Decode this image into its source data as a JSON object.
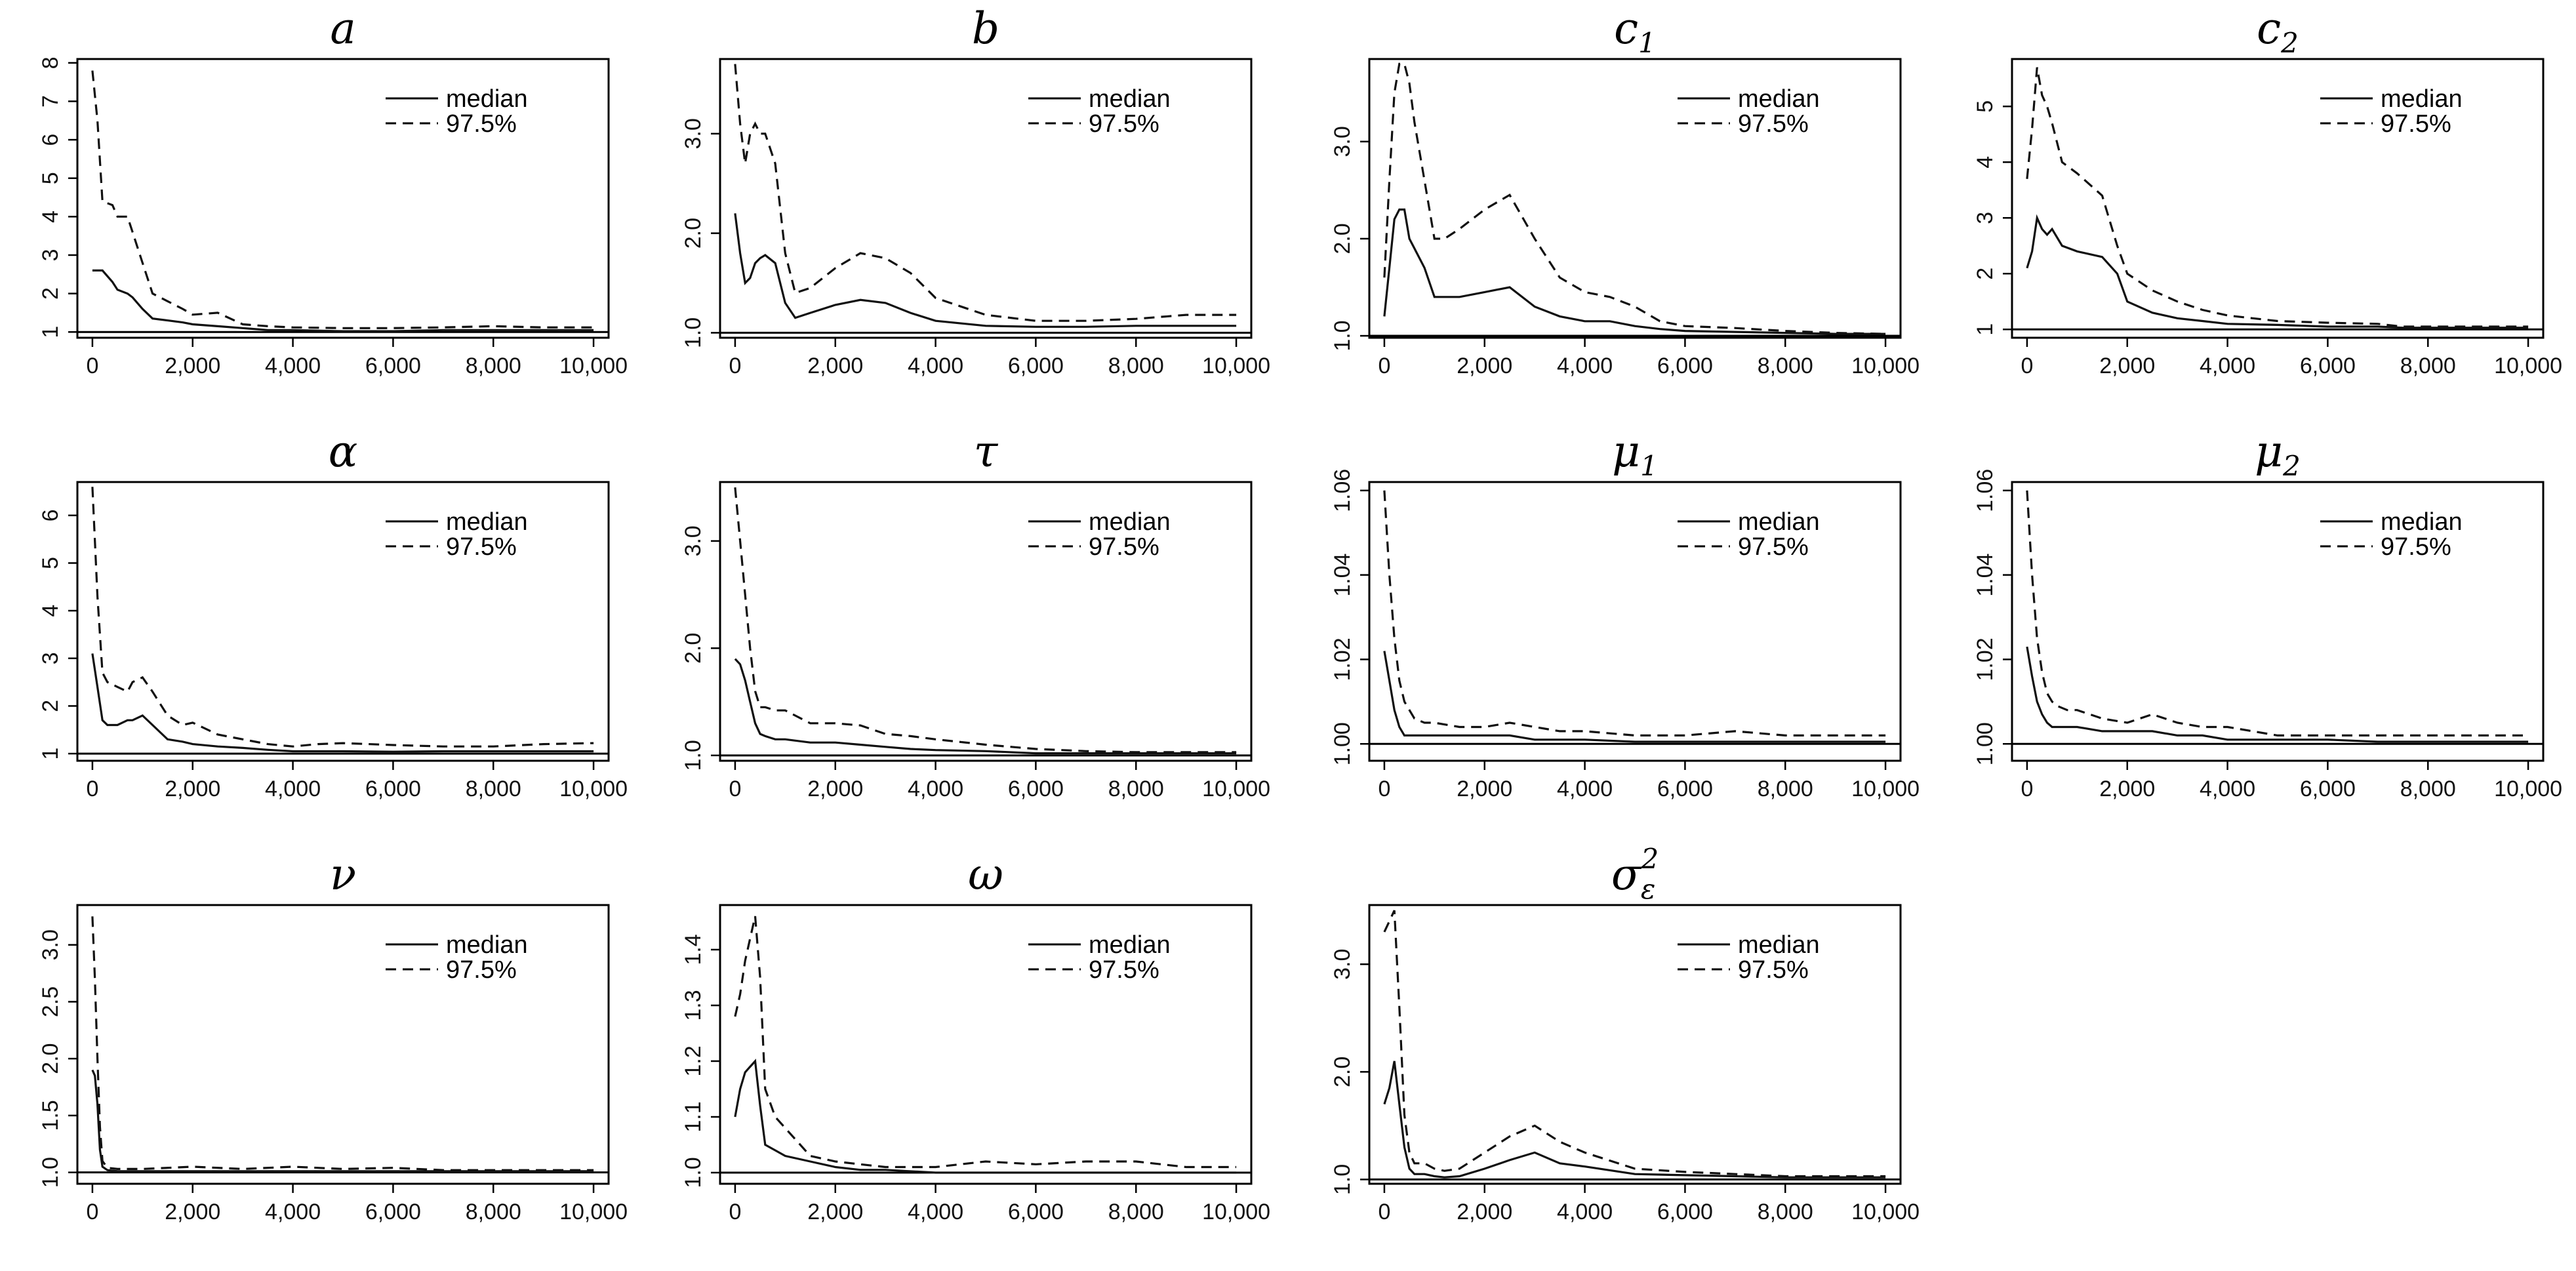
{
  "figure_description": "Convergence diagnostics (median and 97.5% quantile) over iterations for 11 model parameters",
  "legend": {
    "median_label": "median",
    "q975_label": "97.5%"
  },
  "chart_data": [
    {
      "type": "line",
      "title": "a",
      "sub": "",
      "sup": "",
      "ylim": [
        0.85,
        8.1
      ],
      "yticks": [
        1,
        2,
        3,
        4,
        5,
        6,
        7,
        8
      ],
      "ytick_labels": [
        "1",
        "2",
        "3",
        "4",
        "5",
        "6",
        "7",
        "8"
      ],
      "x": [
        0,
        100,
        200,
        400,
        500,
        700,
        800,
        1000,
        1200,
        1500,
        1800,
        2000,
        2500,
        3000,
        3500,
        4000,
        5000,
        6000,
        7000,
        8000,
        9000,
        10000
      ],
      "series": [
        {
          "name": "median",
          "values": [
            2.6,
            2.6,
            2.6,
            2.3,
            2.1,
            2.0,
            1.9,
            1.6,
            1.35,
            1.3,
            1.25,
            1.2,
            1.15,
            1.1,
            1.05,
            1.05,
            1.02,
            1.02,
            1.05,
            1.05,
            1.05,
            1.05
          ]
        },
        {
          "name": "97.5%",
          "values": [
            7.8,
            6.5,
            4.4,
            4.3,
            4.0,
            4.0,
            3.6,
            2.8,
            2.0,
            1.8,
            1.6,
            1.45,
            1.5,
            1.2,
            1.15,
            1.12,
            1.1,
            1.1,
            1.12,
            1.15,
            1.12,
            1.12
          ]
        }
      ]
    },
    {
      "type": "line",
      "title": "b",
      "sub": "",
      "sup": "",
      "ylim": [
        0.95,
        3.75
      ],
      "yticks": [
        1,
        2,
        3
      ],
      "ytick_labels": [
        "1.0",
        "2.0",
        "3.0"
      ],
      "x": [
        0,
        100,
        200,
        300,
        400,
        500,
        600,
        800,
        1000,
        1200,
        1500,
        2000,
        2500,
        3000,
        3500,
        4000,
        5000,
        6000,
        7000,
        8000,
        9000,
        10000
      ],
      "series": [
        {
          "name": "median",
          "values": [
            2.2,
            1.8,
            1.5,
            1.55,
            1.7,
            1.75,
            1.78,
            1.7,
            1.3,
            1.15,
            1.2,
            1.28,
            1.33,
            1.3,
            1.2,
            1.12,
            1.07,
            1.06,
            1.06,
            1.07,
            1.07,
            1.07
          ]
        },
        {
          "name": "97.5%",
          "values": [
            3.7,
            3.1,
            2.7,
            3.0,
            3.1,
            3.0,
            3.0,
            2.7,
            1.8,
            1.4,
            1.45,
            1.65,
            1.8,
            1.75,
            1.6,
            1.35,
            1.18,
            1.12,
            1.12,
            1.14,
            1.18,
            1.18
          ]
        }
      ]
    },
    {
      "type": "line",
      "title": "c",
      "sub": "1",
      "sup": "",
      "ylim": [
        0.98,
        3.85
      ],
      "yticks": [
        1,
        2,
        3
      ],
      "ytick_labels": [
        "1.0",
        "2.0",
        "3.0"
      ],
      "x": [
        0,
        100,
        200,
        300,
        400,
        500,
        600,
        800,
        1000,
        1200,
        1500,
        2000,
        2500,
        3000,
        3500,
        4000,
        4500,
        5000,
        5500,
        6000,
        7000,
        8000,
        9000,
        10000
      ],
      "series": [
        {
          "name": "median",
          "values": [
            1.2,
            1.7,
            2.2,
            2.3,
            2.3,
            2.0,
            1.9,
            1.7,
            1.4,
            1.4,
            1.4,
            1.45,
            1.5,
            1.3,
            1.2,
            1.15,
            1.15,
            1.1,
            1.07,
            1.05,
            1.04,
            1.03,
            1.02,
            1.02
          ]
        },
        {
          "name": "97.5%",
          "values": [
            1.6,
            2.6,
            3.5,
            3.8,
            3.8,
            3.6,
            3.2,
            2.6,
            2.0,
            2.0,
            2.1,
            2.3,
            2.45,
            2.0,
            1.6,
            1.45,
            1.4,
            1.3,
            1.15,
            1.1,
            1.08,
            1.05,
            1.03,
            1.02
          ]
        }
      ]
    },
    {
      "type": "line",
      "title": "c",
      "sub": "2",
      "sup": "",
      "ylim": [
        0.85,
        5.85
      ],
      "yticks": [
        1,
        2,
        3,
        4,
        5
      ],
      "ytick_labels": [
        "1",
        "2",
        "3",
        "4",
        "5"
      ],
      "x": [
        0,
        100,
        200,
        300,
        400,
        500,
        700,
        1000,
        1500,
        1800,
        2000,
        2500,
        3000,
        3500,
        4000,
        5000,
        6000,
        7000,
        7500,
        8000,
        9000,
        10000
      ],
      "series": [
        {
          "name": "median",
          "values": [
            2.1,
            2.4,
            3.0,
            2.8,
            2.7,
            2.8,
            2.5,
            2.4,
            2.3,
            2.0,
            1.5,
            1.3,
            1.2,
            1.15,
            1.1,
            1.08,
            1.05,
            1.05,
            1.03,
            1.03,
            1.03,
            1.03
          ]
        },
        {
          "name": "97.5%",
          "values": [
            3.7,
            4.6,
            5.7,
            5.2,
            5.0,
            4.7,
            4.0,
            3.8,
            3.4,
            2.5,
            2.0,
            1.7,
            1.5,
            1.35,
            1.25,
            1.15,
            1.12,
            1.1,
            1.05,
            1.05,
            1.05,
            1.05
          ]
        }
      ]
    },
    {
      "type": "line",
      "title": "α",
      "sub": "",
      "sup": "",
      "ylim": [
        0.85,
        6.7
      ],
      "yticks": [
        1,
        2,
        3,
        4,
        5,
        6
      ],
      "ytick_labels": [
        "1",
        "2",
        "3",
        "4",
        "5",
        "6"
      ],
      "x": [
        0,
        100,
        200,
        300,
        500,
        700,
        800,
        1000,
        1200,
        1500,
        1800,
        2000,
        2500,
        3000,
        3500,
        4000,
        4500,
        5000,
        6000,
        7000,
        8000,
        9000,
        10000
      ],
      "series": [
        {
          "name": "median",
          "values": [
            3.1,
            2.4,
            1.7,
            1.6,
            1.6,
            1.7,
            1.7,
            1.8,
            1.6,
            1.3,
            1.25,
            1.2,
            1.15,
            1.12,
            1.08,
            1.05,
            1.05,
            1.05,
            1.04,
            1.05,
            1.05,
            1.05,
            1.05
          ]
        },
        {
          "name": "97.5%",
          "values": [
            6.6,
            4.3,
            2.7,
            2.5,
            2.4,
            2.3,
            2.5,
            2.6,
            2.3,
            1.8,
            1.6,
            1.65,
            1.4,
            1.3,
            1.2,
            1.15,
            1.2,
            1.22,
            1.18,
            1.15,
            1.15,
            1.2,
            1.22
          ]
        }
      ]
    },
    {
      "type": "line",
      "title": "τ",
      "sub": "",
      "sup": "",
      "ylim": [
        0.95,
        3.55
      ],
      "yticks": [
        1,
        2,
        3
      ],
      "ytick_labels": [
        "1.0",
        "2.0",
        "3.0"
      ],
      "x": [
        0,
        100,
        200,
        300,
        400,
        500,
        600,
        800,
        1000,
        1500,
        2000,
        2500,
        3000,
        3500,
        4000,
        5000,
        6000,
        7000,
        8000,
        9000,
        10000
      ],
      "series": [
        {
          "name": "median",
          "values": [
            1.9,
            1.85,
            1.7,
            1.5,
            1.3,
            1.2,
            1.18,
            1.15,
            1.15,
            1.12,
            1.12,
            1.1,
            1.08,
            1.06,
            1.05,
            1.04,
            1.02,
            1.02,
            1.02,
            1.02,
            1.02
          ]
        },
        {
          "name": "97.5%",
          "values": [
            3.5,
            3.0,
            2.5,
            2.0,
            1.6,
            1.45,
            1.45,
            1.42,
            1.42,
            1.3,
            1.3,
            1.28,
            1.2,
            1.18,
            1.15,
            1.1,
            1.06,
            1.04,
            1.03,
            1.03,
            1.03
          ]
        }
      ]
    },
    {
      "type": "line",
      "title": "μ",
      "sub": "1",
      "sup": "",
      "ylim": [
        0.996,
        1.062
      ],
      "yticks": [
        1.0,
        1.02,
        1.04,
        1.06
      ],
      "ytick_labels": [
        "1.00",
        "1.02",
        "1.04",
        "1.06"
      ],
      "x": [
        0,
        100,
        200,
        300,
        400,
        500,
        600,
        800,
        1000,
        1500,
        2000,
        2500,
        3000,
        3500,
        4000,
        5000,
        6000,
        7000,
        8000,
        9000,
        10000
      ],
      "series": [
        {
          "name": "median",
          "values": [
            1.022,
            1.015,
            1.008,
            1.004,
            1.002,
            1.002,
            1.002,
            1.002,
            1.002,
            1.002,
            1.002,
            1.002,
            1.001,
            1.001,
            1.001,
            1.0005,
            1.0005,
            1.0005,
            1.0005,
            1.0005,
            1.0005
          ]
        },
        {
          "name": "97.5%",
          "values": [
            1.06,
            1.04,
            1.025,
            1.015,
            1.01,
            1.008,
            1.006,
            1.005,
            1.005,
            1.004,
            1.004,
            1.005,
            1.004,
            1.003,
            1.003,
            1.002,
            1.002,
            1.003,
            1.002,
            1.002,
            1.002
          ]
        }
      ]
    },
    {
      "type": "line",
      "title": "μ",
      "sub": "2",
      "sup": "",
      "ylim": [
        0.996,
        1.062
      ],
      "yticks": [
        1.0,
        1.02,
        1.04,
        1.06
      ],
      "ytick_labels": [
        "1.00",
        "1.02",
        "1.04",
        "1.06"
      ],
      "x": [
        0,
        100,
        200,
        300,
        400,
        500,
        600,
        800,
        1000,
        1500,
        2000,
        2500,
        3000,
        3500,
        4000,
        5000,
        6000,
        7000,
        8000,
        9000,
        10000
      ],
      "series": [
        {
          "name": "median",
          "values": [
            1.023,
            1.016,
            1.01,
            1.007,
            1.005,
            1.004,
            1.004,
            1.004,
            1.004,
            1.003,
            1.003,
            1.003,
            1.002,
            1.002,
            1.001,
            1.001,
            1.001,
            1.0005,
            1.0005,
            1.0005,
            1.0005
          ]
        },
        {
          "name": "97.5%",
          "values": [
            1.06,
            1.04,
            1.025,
            1.017,
            1.012,
            1.01,
            1.009,
            1.008,
            1.008,
            1.006,
            1.005,
            1.007,
            1.005,
            1.004,
            1.004,
            1.002,
            1.002,
            1.002,
            1.002,
            1.002,
            1.002
          ]
        }
      ]
    },
    {
      "type": "line",
      "title": "ν",
      "sub": "",
      "sup": "",
      "ylim": [
        0.9,
        3.35
      ],
      "yticks": [
        1,
        1.5,
        2,
        2.5,
        3
      ],
      "ytick_labels": [
        "1.0",
        "1.5",
        "2.0",
        "2.5",
        "3.0"
      ],
      "x": [
        0,
        50,
        100,
        150,
        200,
        300,
        500,
        1000,
        2000,
        3000,
        4000,
        5000,
        6000,
        7000,
        8000,
        9000,
        10000
      ],
      "series": [
        {
          "name": "median",
          "values": [
            1.9,
            1.85,
            1.6,
            1.2,
            1.05,
            1.02,
            1.01,
            1.01,
            1.01,
            1.01,
            1.01,
            1.01,
            1.01,
            1.01,
            1.01,
            1.01,
            1.01
          ]
        },
        {
          "name": "97.5%",
          "values": [
            3.25,
            2.7,
            2.0,
            1.4,
            1.1,
            1.04,
            1.03,
            1.03,
            1.05,
            1.03,
            1.05,
            1.03,
            1.04,
            1.02,
            1.02,
            1.02,
            1.02
          ]
        }
      ]
    },
    {
      "type": "line",
      "title": "ω",
      "sub": "",
      "sup": "",
      "ylim": [
        0.98,
        1.48
      ],
      "yticks": [
        1.0,
        1.1,
        1.2,
        1.3,
        1.4
      ],
      "ytick_labels": [
        "1.0",
        "1.1",
        "1.2",
        "1.3",
        "1.4"
      ],
      "x": [
        0,
        100,
        200,
        300,
        400,
        500,
        600,
        800,
        1000,
        1500,
        2000,
        2500,
        3000,
        4000,
        5000,
        6000,
        7000,
        8000,
        9000,
        10000
      ],
      "series": [
        {
          "name": "median",
          "values": [
            1.1,
            1.15,
            1.18,
            1.19,
            1.2,
            1.12,
            1.05,
            1.04,
            1.03,
            1.02,
            1.01,
            1.005,
            1.005,
            1.0,
            1.0,
            1.0,
            1.0,
            1.0,
            1.0,
            1.0
          ]
        },
        {
          "name": "97.5%",
          "values": [
            1.28,
            1.32,
            1.38,
            1.42,
            1.46,
            1.35,
            1.15,
            1.1,
            1.08,
            1.03,
            1.02,
            1.015,
            1.01,
            1.01,
            1.02,
            1.015,
            1.02,
            1.02,
            1.01,
            1.01
          ]
        }
      ]
    },
    {
      "type": "line",
      "title": "σ",
      "sub": "ε",
      "sup": "2",
      "ylim": [
        0.96,
        3.55
      ],
      "yticks": [
        1,
        2,
        3
      ],
      "ytick_labels": [
        "1.0",
        "2.0",
        "3.0"
      ],
      "x": [
        0,
        100,
        200,
        300,
        400,
        500,
        600,
        800,
        1000,
        1200,
        1500,
        2000,
        2500,
        3000,
        3500,
        4000,
        5000,
        6000,
        7000,
        8000,
        9000,
        10000
      ],
      "series": [
        {
          "name": "median",
          "values": [
            1.7,
            1.85,
            2.1,
            1.7,
            1.3,
            1.1,
            1.05,
            1.05,
            1.03,
            1.02,
            1.03,
            1.1,
            1.18,
            1.25,
            1.15,
            1.12,
            1.05,
            1.04,
            1.03,
            1.02,
            1.02,
            1.02
          ]
        },
        {
          "name": "97.5%",
          "values": [
            3.3,
            3.4,
            3.5,
            2.6,
            1.6,
            1.25,
            1.15,
            1.15,
            1.1,
            1.08,
            1.1,
            1.25,
            1.4,
            1.5,
            1.35,
            1.25,
            1.1,
            1.07,
            1.05,
            1.03,
            1.03,
            1.03
          ]
        }
      ]
    }
  ],
  "xaxis": {
    "ticks": [
      0,
      2000,
      4000,
      6000,
      8000,
      10000
    ],
    "tick_labels": [
      "0",
      "2,000",
      "4,000",
      "6,000",
      "8,000",
      "10,000"
    ],
    "xlim": [
      -300,
      10300
    ]
  }
}
